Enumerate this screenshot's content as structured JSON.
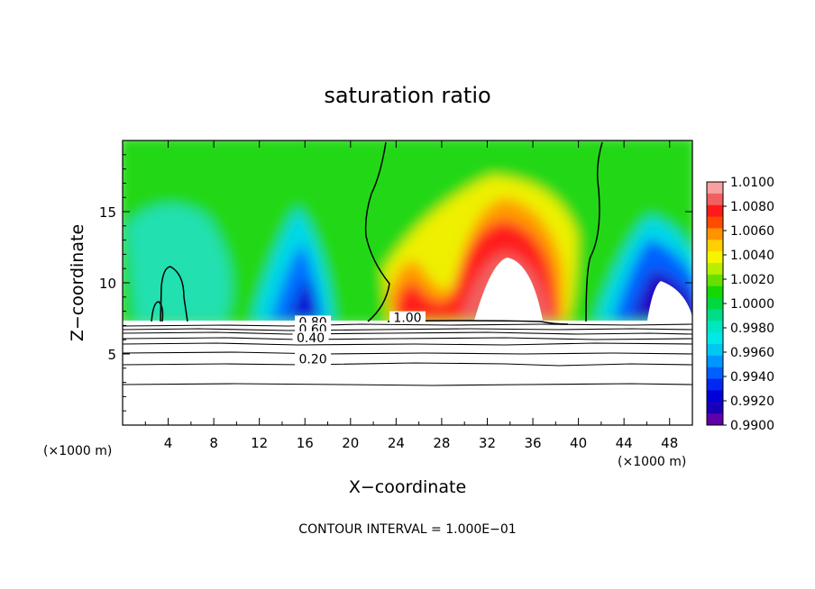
{
  "chart_data": {
    "type": "heatmap",
    "title": "saturation ratio",
    "xlabel": "X−coordinate",
    "ylabel": "Z−coordinate",
    "x_unit_left": "(×1000 m)",
    "x_unit_right": "(×1000 m)",
    "footer": "CONTOUR INTERVAL = 1.000E−01",
    "xlim": [
      0,
      50
    ],
    "ylim": [
      0,
      20
    ],
    "xticks": [
      4,
      8,
      12,
      16,
      20,
      24,
      28,
      32,
      36,
      40,
      44,
      48
    ],
    "yticks": [
      5,
      10,
      15
    ],
    "colorbar": {
      "min": 0.99,
      "max": 1.01,
      "labels": [
        "1.0100",
        "1.0080",
        "1.0060",
        "1.0040",
        "1.0020",
        "1.0000",
        "0.9980",
        "0.9960",
        "0.9940",
        "0.9920",
        "0.9900"
      ],
      "colors": [
        "#f7a0a0",
        "#f06060",
        "#ff1a1a",
        "#ff4b00",
        "#ff9400",
        "#ffcf00",
        "#f5f500",
        "#b8ee00",
        "#66e000",
        "#14d800",
        "#00d840",
        "#00dd88",
        "#00e6c0",
        "#00e8e8",
        "#00c8f0",
        "#0096ff",
        "#0060ff",
        "#0028f0",
        "#0000d8",
        "#1800b8",
        "#6000a8"
      ]
    },
    "contour_labels": [
      {
        "text": "0.80",
        "x": 16.7,
        "y": 7.0
      },
      {
        "text": "0.60",
        "x": 16.7,
        "y": 6.5
      },
      {
        "text": "0.40",
        "x": 16.5,
        "y": 5.9
      },
      {
        "text": "0.20",
        "x": 16.7,
        "y": 4.4
      },
      {
        "text": "1.00",
        "x": 25.0,
        "y": 7.3
      }
    ],
    "background_contours": [
      {
        "level": 0.2,
        "z": 4.4
      },
      {
        "level": 0.0,
        "z": 2.9
      }
    ]
  }
}
